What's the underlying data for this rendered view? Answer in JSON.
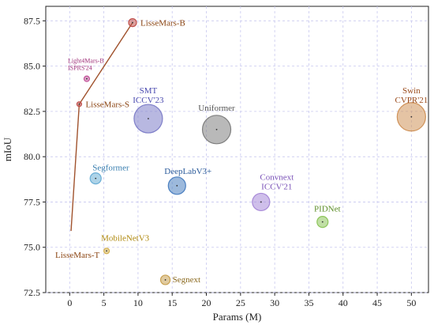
{
  "chart_data": {
    "type": "scatter",
    "xlabel": "Params (M)",
    "ylabel": "mIoU",
    "xlim": [
      -3.5,
      52.5
    ],
    "ylim": [
      72.5,
      88.3
    ],
    "xticks": [
      "0",
      "5",
      "10",
      "15",
      "20",
      "25",
      "30",
      "35",
      "40",
      "45",
      "50"
    ],
    "yticks": [
      "72.5",
      "75.0",
      "77.5",
      "80.0",
      "82.5",
      "85.0",
      "87.5"
    ],
    "grid": true,
    "points": [
      {
        "lines": [
          "LisseMars-B"
        ],
        "x": 9.2,
        "y": 87.4,
        "r": 5,
        "color": "#c0504d",
        "labelColor": "#8b4513",
        "small": false
      },
      {
        "lines": [
          "Light4Mars-B",
          "ISPRS'24"
        ],
        "x": 2.5,
        "y": 84.3,
        "r": 3.5,
        "color": "#c2549a",
        "labelColor": "#a0317a",
        "small": true
      },
      {
        "lines": [
          "LisseMars-S"
        ],
        "x": 1.4,
        "y": 82.9,
        "r": 3,
        "color": "#c0504d",
        "labelColor": "#8b4513",
        "small": false
      },
      {
        "lines": [
          "SMT",
          "ICCV'23"
        ],
        "x": 11.5,
        "y": 82.1,
        "r": 18,
        "color": "#7e7ec8",
        "labelColor": "#4b4bb0",
        "small": false
      },
      {
        "lines": [
          "Uniformer"
        ],
        "x": 21.5,
        "y": 81.5,
        "r": 18,
        "color": "#7f7f7f",
        "labelColor": "#555555",
        "small": false
      },
      {
        "lines": [
          "Swin",
          "CVPR'21"
        ],
        "x": 50.0,
        "y": 82.2,
        "r": 18,
        "color": "#d0935a",
        "labelColor": "#9a4a1a",
        "small": false
      },
      {
        "lines": [
          "Segformer"
        ],
        "x": 3.8,
        "y": 78.8,
        "r": 7,
        "color": "#6aaed6",
        "labelColor": "#3a7fb0",
        "small": false
      },
      {
        "lines": [
          "DeepLabV3+"
        ],
        "x": 15.7,
        "y": 78.4,
        "r": 11,
        "color": "#4a7fc0",
        "labelColor": "#2a5a9a",
        "small": false
      },
      {
        "lines": [
          "Convnext",
          "ICCV'21"
        ],
        "x": 28.0,
        "y": 77.5,
        "r": 11,
        "color": "#a88ad8",
        "labelColor": "#7a52b8",
        "small": false
      },
      {
        "lines": [
          "PIDNet"
        ],
        "x": 37.0,
        "y": 76.4,
        "r": 7,
        "color": "#8dc55a",
        "labelColor": "#5e8f2a",
        "small": false
      },
      {
        "lines": [
          "LisseMars-T"
        ],
        "x": 0.2,
        "y": 75.9,
        "r": 0,
        "color": "#c0504d",
        "labelColor": "#8b4513",
        "small": false
      },
      {
        "lines": [
          "MobileNetV3"
        ],
        "x": 5.4,
        "y": 74.8,
        "r": 3.5,
        "color": "#d4b050",
        "labelColor": "#b08a10",
        "small": false
      },
      {
        "lines": [
          "Segnext"
        ],
        "x": 14.0,
        "y": 73.2,
        "r": 6,
        "color": "#c8a050",
        "labelColor": "#8b6a20",
        "small": false
      }
    ],
    "line_series": {
      "color": "#a0522d",
      "x": [
        0.2,
        1.4,
        9.2
      ],
      "y": [
        75.9,
        82.9,
        87.4
      ]
    }
  }
}
